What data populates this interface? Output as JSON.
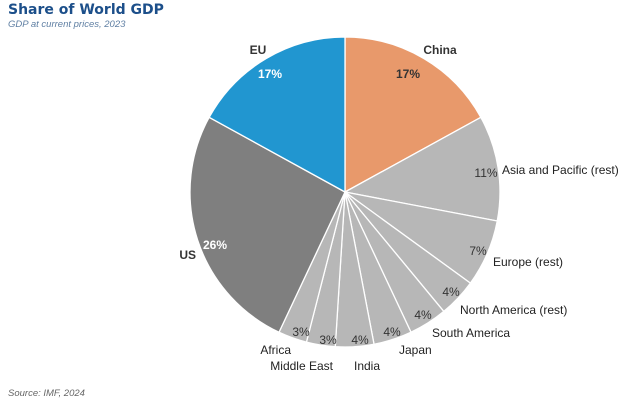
{
  "title": "Share of World GDP",
  "subtitle": "GDP at current prices, 2023",
  "source": "Source: IMF, 2024",
  "chart_data": {
    "type": "pie",
    "slices": [
      {
        "label": "China",
        "value": 17,
        "value_label": "17%",
        "color": "#e8996b"
      },
      {
        "label": "Asia and Pacific (rest)",
        "value": 11,
        "value_label": "11%",
        "color": "#b7b7b7"
      },
      {
        "label": "Europe (rest)",
        "value": 7,
        "value_label": "7%",
        "color": "#b7b7b7"
      },
      {
        "label": "North America (rest)",
        "value": 4,
        "value_label": "4%",
        "color": "#b7b7b7"
      },
      {
        "label": "South America",
        "value": 4,
        "value_label": "4%",
        "color": "#b7b7b7"
      },
      {
        "label": "Japan",
        "value": 4,
        "value_label": "4%",
        "color": "#b7b7b7"
      },
      {
        "label": "India",
        "value": 4,
        "value_label": "4%",
        "color": "#b7b7b7"
      },
      {
        "label": "Middle East",
        "value": 3,
        "value_label": "3%",
        "color": "#b7b7b7"
      },
      {
        "label": "Africa",
        "value": 3,
        "value_label": "3%",
        "color": "#b7b7b7"
      },
      {
        "label": "US",
        "value": 26,
        "value_label": "26%",
        "color": "#7f7f7f"
      },
      {
        "label": "EU",
        "value": 17,
        "value_label": "17%",
        "color": "#2196d0"
      }
    ],
    "start": "12 o'clock",
    "direction": "clockwise"
  }
}
